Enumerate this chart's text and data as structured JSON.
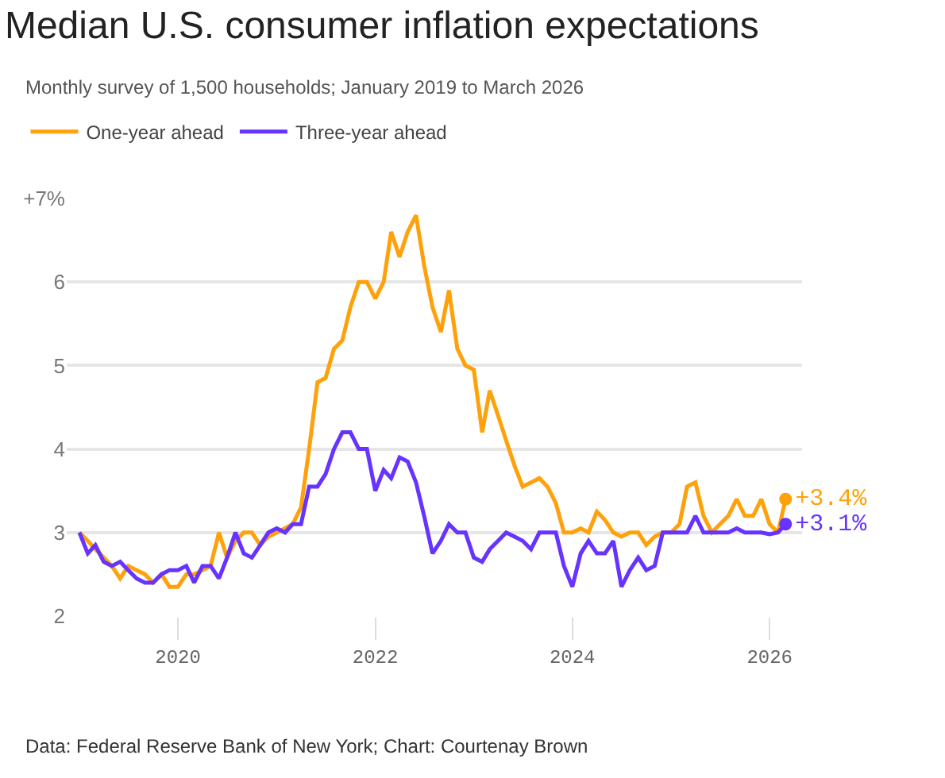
{
  "chart_data": {
    "type": "line",
    "title": "Median U.S. consumer inflation expectations",
    "subtitle": "Monthly survey of 1,500 households; January 2019 to March 2026",
    "x": [
      "2019-01",
      "2019-02",
      "2019-03",
      "2019-04",
      "2019-05",
      "2019-06",
      "2019-07",
      "2019-08",
      "2019-09",
      "2019-10",
      "2019-11",
      "2019-12",
      "2020-01",
      "2020-02",
      "2020-03",
      "2020-04",
      "2020-05",
      "2020-06",
      "2020-07",
      "2020-08",
      "2020-09",
      "2020-10",
      "2020-11",
      "2020-12",
      "2021-01",
      "2021-02",
      "2021-03",
      "2021-04",
      "2021-05",
      "2021-06",
      "2021-07",
      "2021-08",
      "2021-09",
      "2021-10",
      "2021-11",
      "2021-12",
      "2022-01",
      "2022-02",
      "2022-03",
      "2022-04",
      "2022-05",
      "2022-06",
      "2022-07",
      "2022-08",
      "2022-09",
      "2022-10",
      "2022-11",
      "2022-12",
      "2023-01",
      "2023-02",
      "2023-03",
      "2023-04",
      "2023-05",
      "2023-06",
      "2023-07",
      "2023-08",
      "2023-09",
      "2023-10",
      "2023-11",
      "2023-12",
      "2024-01",
      "2024-02",
      "2024-03",
      "2024-04",
      "2024-05",
      "2024-06",
      "2024-07",
      "2024-08",
      "2024-09",
      "2024-10",
      "2024-11",
      "2024-12",
      "2025-01",
      "2025-02",
      "2025-03",
      "2025-04",
      "2025-05",
      "2025-06",
      "2025-07",
      "2025-08",
      "2025-09",
      "2025-10",
      "2025-11",
      "2025-12",
      "2026-01",
      "2026-02",
      "2026-03"
    ],
    "series": [
      {
        "name": "One-year ahead",
        "color": "#ffa10a",
        "values": [
          3.0,
          2.9,
          2.8,
          2.7,
          2.6,
          2.45,
          2.6,
          2.55,
          2.5,
          2.4,
          2.5,
          2.35,
          2.35,
          2.5,
          2.5,
          2.55,
          2.6,
          3.0,
          2.7,
          2.9,
          3.0,
          3.0,
          2.85,
          2.95,
          3.0,
          3.05,
          3.1,
          3.3,
          4.0,
          4.8,
          4.85,
          5.2,
          5.3,
          5.7,
          6.0,
          6.0,
          5.8,
          6.0,
          6.6,
          6.3,
          6.6,
          6.8,
          6.2,
          5.7,
          5.4,
          5.9,
          5.2,
          5.0,
          4.95,
          4.2,
          4.7,
          4.4,
          4.1,
          3.8,
          3.55,
          3.6,
          3.65,
          3.55,
          3.35,
          3.0,
          3.0,
          3.05,
          3.0,
          3.25,
          3.15,
          3.0,
          2.95,
          3.0,
          3.0,
          2.85,
          2.95,
          3.0,
          3.0,
          3.1,
          3.55,
          3.6,
          3.2,
          3.0,
          3.1,
          3.2,
          3.4,
          3.2,
          3.2,
          3.4,
          3.1,
          3.0,
          3.4
        ],
        "value_labels": [
          null,
          null,
          null,
          null,
          null,
          null,
          null,
          null,
          null,
          null,
          null,
          null,
          null,
          null,
          null,
          null,
          null,
          null,
          null,
          null,
          null,
          null,
          null,
          null,
          null,
          null,
          null,
          null,
          null,
          null,
          null,
          null,
          null,
          null,
          null,
          null,
          null,
          null,
          null,
          null,
          null,
          null,
          null,
          null,
          null,
          null,
          null,
          null,
          null,
          null,
          null,
          null,
          null,
          null,
          null,
          null,
          null,
          null,
          null,
          null,
          null,
          null,
          null,
          null,
          null,
          null,
          null,
          null,
          null,
          null,
          null,
          null,
          null,
          null,
          null,
          null,
          null,
          null,
          null,
          null,
          null,
          null,
          null,
          null,
          null,
          null,
          "+3.4%"
        ]
      },
      {
        "name": "Three-year ahead",
        "color": "#6633ff",
        "values": [
          3.0,
          2.75,
          2.85,
          2.65,
          2.6,
          2.65,
          2.55,
          2.45,
          2.4,
          2.4,
          2.5,
          2.55,
          2.55,
          2.6,
          2.4,
          2.6,
          2.6,
          2.45,
          2.7,
          3.0,
          2.75,
          2.7,
          2.85,
          3.0,
          3.05,
          3.0,
          3.1,
          3.1,
          3.55,
          3.55,
          3.7,
          4.0,
          4.2,
          4.2,
          4.0,
          4.0,
          3.5,
          3.75,
          3.65,
          3.9,
          3.85,
          3.6,
          3.2,
          2.75,
          2.9,
          3.1,
          3.0,
          3.0,
          2.7,
          2.65,
          2.8,
          2.9,
          3.0,
          2.95,
          2.9,
          2.8,
          3.0,
          3.0,
          3.0,
          2.6,
          2.35,
          2.75,
          2.9,
          2.75,
          2.75,
          2.9,
          2.35,
          2.55,
          2.7,
          2.55,
          2.6,
          3.0,
          3.0,
          3.0,
          3.0,
          3.2,
          3.0,
          3.0,
          3.0,
          3.0,
          3.05,
          3.0,
          3.0,
          3.0,
          2.98,
          3.0,
          3.1
        ],
        "value_labels": [
          null,
          null,
          null,
          null,
          null,
          null,
          null,
          null,
          null,
          null,
          null,
          null,
          null,
          null,
          null,
          null,
          null,
          null,
          null,
          null,
          null,
          null,
          null,
          null,
          null,
          null,
          null,
          null,
          null,
          null,
          null,
          null,
          null,
          null,
          null,
          null,
          null,
          null,
          null,
          null,
          null,
          null,
          null,
          null,
          null,
          null,
          null,
          null,
          null,
          null,
          null,
          null,
          null,
          null,
          null,
          null,
          null,
          null,
          null,
          null,
          null,
          null,
          null,
          null,
          null,
          null,
          null,
          null,
          null,
          null,
          null,
          null,
          null,
          null,
          null,
          null,
          null,
          null,
          null,
          null,
          null,
          null,
          null,
          null,
          null,
          null,
          "+3.1%"
        ]
      }
    ],
    "xlim": [
      "2018-11-15",
      "2026-05-01"
    ],
    "xticks": [
      {
        "value": "2020",
        "label": "2020"
      },
      {
        "value": "2022",
        "label": "2022"
      },
      {
        "value": "2024",
        "label": "2024"
      },
      {
        "value": "2026",
        "label": "2026"
      }
    ],
    "ylim": [
      2,
      7
    ],
    "yticks": [
      2,
      3,
      4,
      5,
      6,
      {
        "value": 7,
        "label": "+7%"
      }
    ],
    "grid": "y",
    "legend": "top left",
    "marker": "none",
    "line_style": "solid",
    "annotations": [
      "Data: Federal Reserve Bank of New York; Chart: Courtenay Brown"
    ]
  }
}
